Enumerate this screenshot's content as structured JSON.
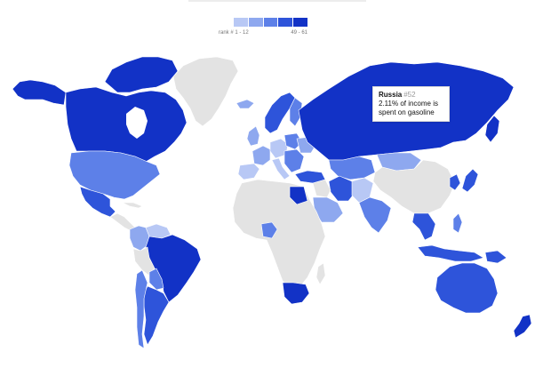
{
  "legend": {
    "low_label": "rank # 1 - 12",
    "high_label": "49 - 61",
    "colors": [
      "#b8c8f5",
      "#8ea8ef",
      "#5d80e8",
      "#2e54da",
      "#1232c6"
    ]
  },
  "palette": {
    "no_data": "#e3e3e3",
    "rank_1": "#b8c8f5",
    "rank_2": "#8ea8ef",
    "rank_3": "#5d80e8",
    "rank_4": "#2e54da",
    "rank_5": "#1232c6"
  },
  "tooltip": {
    "country": "Russia",
    "rank": "#52",
    "line1": "2.11% of income is",
    "line2": "spent on gasoline"
  }
}
